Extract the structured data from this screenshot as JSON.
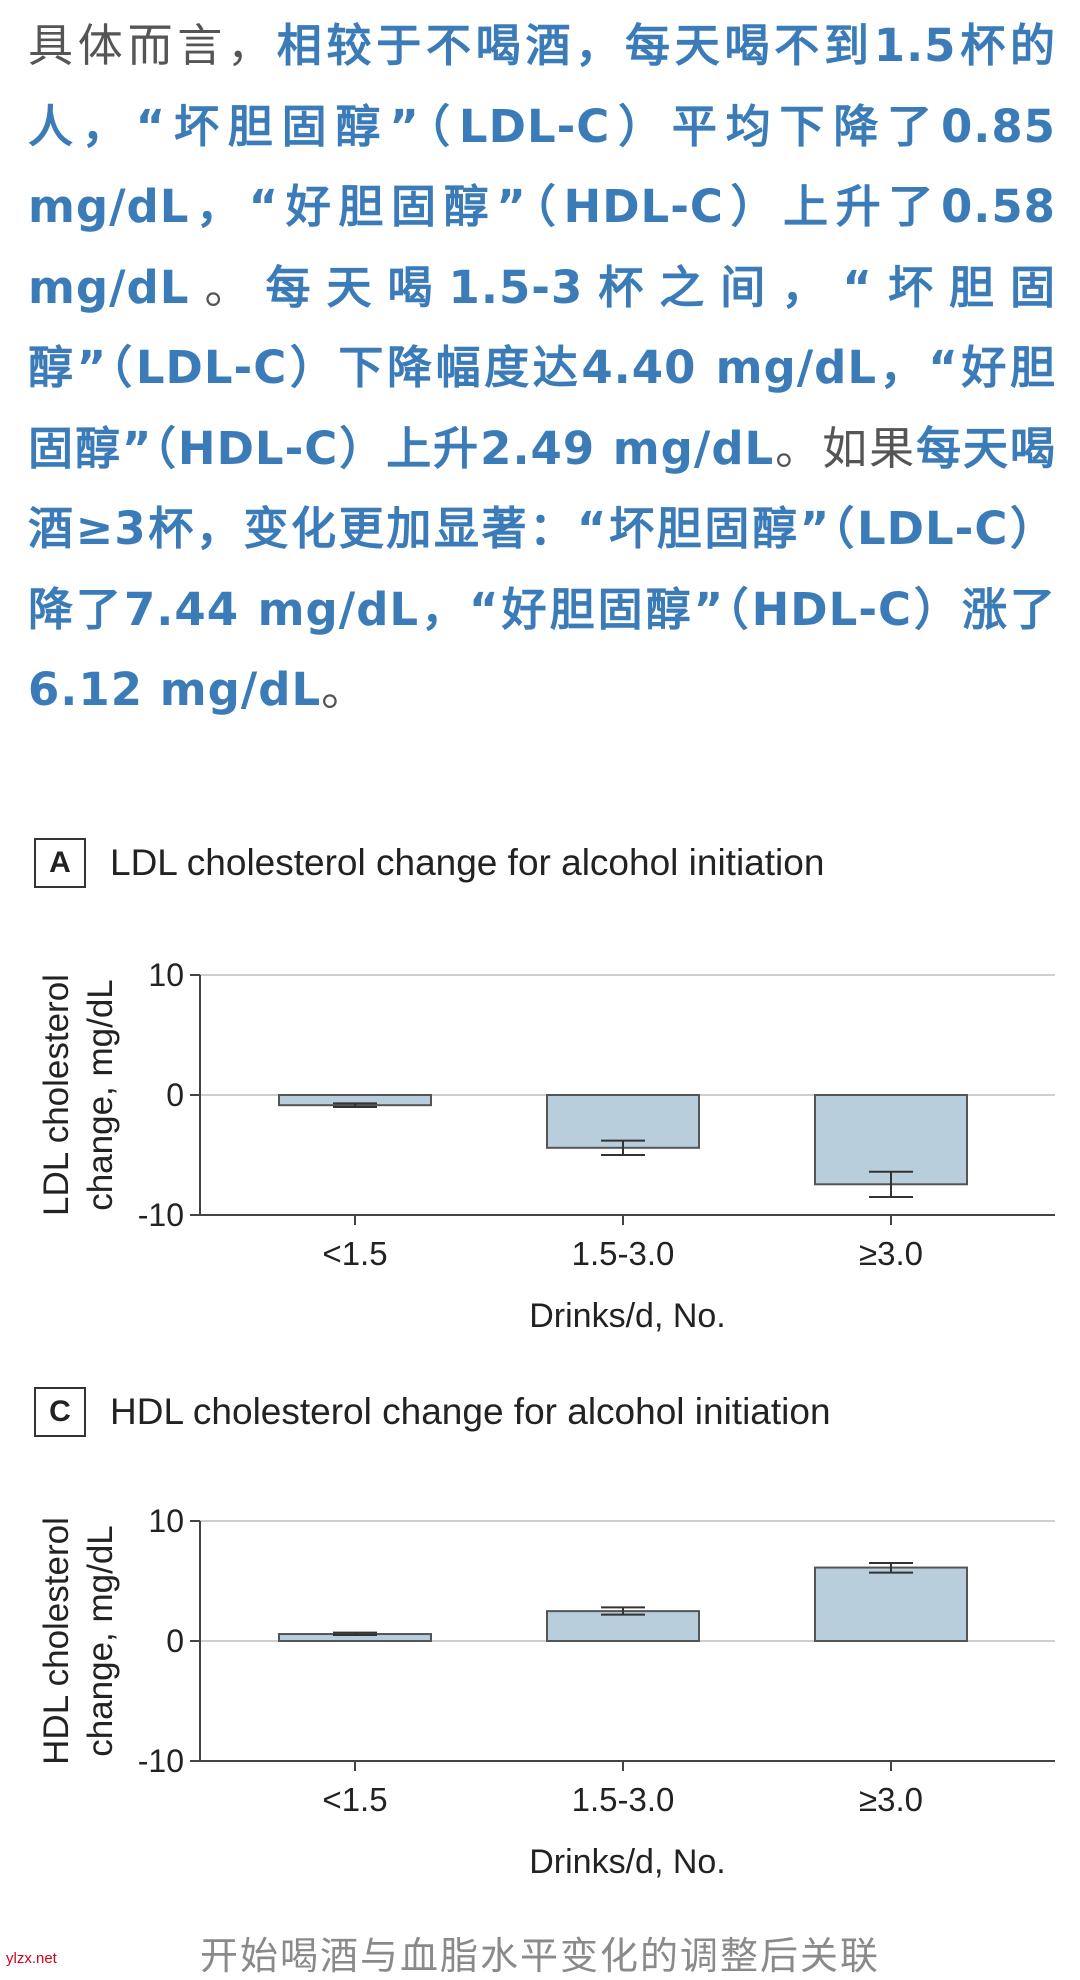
{
  "article": {
    "segments": [
      {
        "text": "具体而言，",
        "highlight": false
      },
      {
        "text": "相较于不喝酒，每天喝不到1.5杯的人，“坏胆固醇”（LDL-C）平均下降了0.85 mg/dL，“好胆固醇”（HDL-C）上升了0.58 mg/dL",
        "highlight": true
      },
      {
        "text": "。",
        "highlight": false
      },
      {
        "text": "每天喝1.5-3杯之间，“坏胆固醇”（LDL-C）下降幅度达4.40 mg/dL，“好胆固醇”（HDL-C）上升2.49 mg/dL",
        "highlight": true
      },
      {
        "text": "。如果",
        "highlight": false
      },
      {
        "text": "每天喝酒≥3杯，变化更加显著：“坏胆固醇”（LDL-C）降了7.44 mg/dL，“好胆固醇”（HDL-C）涨了6.12 mg/dL",
        "highlight": true
      },
      {
        "text": "。",
        "highlight": false
      }
    ]
  },
  "panels": [
    {
      "letter": "A",
      "title": "LDL cholesterol change for alcohol initiation"
    },
    {
      "letter": "C",
      "title": "HDL cholesterol change for alcohol initiation"
    }
  ],
  "chart_data": [
    {
      "type": "bar",
      "ylabel_line1": "LDL cholesterol",
      "ylabel_line2": "change, mg/dL",
      "xlabel": "Drinks/d, No.",
      "categories": [
        "<1.5",
        "1.5-3.0",
        "≥3.0"
      ],
      "values": [
        -0.85,
        -4.4,
        -7.44
      ],
      "error_low": [
        -1.0,
        -5.0,
        -8.5
      ],
      "error_high": [
        -0.7,
        -3.8,
        -6.4
      ],
      "ylim": [
        -10,
        10
      ],
      "yticks": [
        "10",
        "0",
        "-10"
      ],
      "grid": true
    },
    {
      "type": "bar",
      "ylabel_line1": "HDL cholesterol",
      "ylabel_line2": "change, mg/dL",
      "xlabel": "Drinks/d, No.",
      "categories": [
        "<1.5",
        "1.5-3.0",
        "≥3.0"
      ],
      "values": [
        0.58,
        2.49,
        6.12
      ],
      "error_low": [
        0.5,
        2.2,
        5.7
      ],
      "error_high": [
        0.7,
        2.8,
        6.5
      ],
      "ylim": [
        -10,
        10
      ],
      "yticks": [
        "10",
        "0",
        "-10"
      ],
      "grid": true
    }
  ],
  "caption": "开始喝酒与血脂水平变化的调整后关联",
  "watermark": "ylzx.net",
  "colors": {
    "highlight": "#3a7bb8",
    "bar_fill": "#b9cedd",
    "bar_stroke": "#555555"
  }
}
